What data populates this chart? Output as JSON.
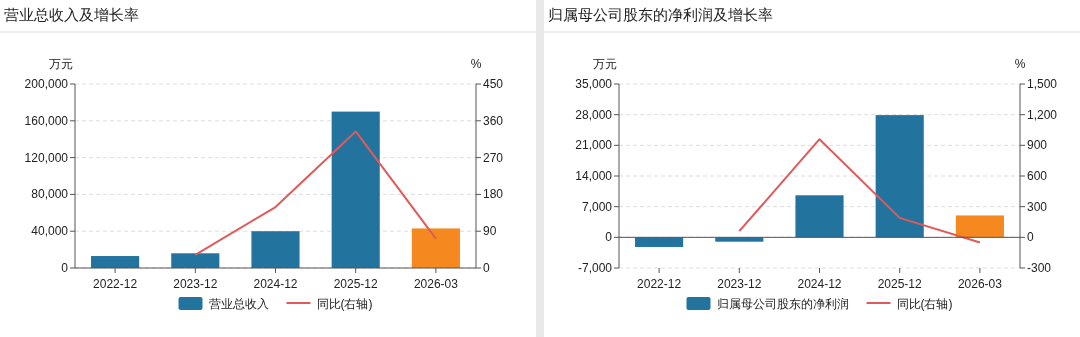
{
  "chart_data": [
    {
      "type": "bar",
      "title": "营业总收入及增长率",
      "ylabel": "万元",
      "y2label": "%",
      "categories": [
        "2022-12",
        "2023-12",
        "2024-12",
        "2025-12",
        "2026-03"
      ],
      "series": [
        {
          "name": "营业总收入",
          "color": "#23739f",
          "colors": [
            "#23739f",
            "#23739f",
            "#23739f",
            "#23739f",
            "#f5891f"
          ],
          "values": [
            13000,
            16000,
            40000,
            170000,
            43000
          ]
        },
        {
          "name": "同比(右轴)",
          "type": "line",
          "axis": "y2",
          "color": "#e05a5a",
          "values": [
            null,
            32,
            149,
            334,
            72
          ]
        }
      ],
      "ylim": [
        0,
        200000
      ],
      "yticks": [
        0,
        {
          "value": 40000,
          "label": "40,000"
        },
        {
          "value": 80000,
          "label": "80,000"
        },
        {
          "value": 120000,
          "label": "120,000"
        },
        {
          "value": 160000,
          "label": "160,000"
        },
        {
          "value": 200000,
          "label": "200,000"
        }
      ],
      "y2lim": [
        0,
        450
      ],
      "y2ticks": [
        0,
        90,
        180,
        270,
        360,
        450
      ],
      "grid": "y",
      "legend": "bottom"
    },
    {
      "type": "bar",
      "title": "归属母公司股东的净利润及增长率",
      "ylabel": "万元",
      "y2label": "%",
      "categories": [
        "2022-12",
        "2023-12",
        "2024-12",
        "2025-12",
        "2026-03"
      ],
      "series": [
        {
          "name": "归属母公司股东的净利润",
          "color": "#23739f",
          "colors": [
            "#23739f",
            "#23739f",
            "#23739f",
            "#23739f",
            "#f5891f"
          ],
          "values": [
            -2200,
            -1000,
            9600,
            27900,
            5000
          ]
        },
        {
          "name": "同比(右轴)",
          "type": "line",
          "axis": "y2",
          "color": "#e05a5a",
          "values": [
            null,
            60,
            960,
            190,
            -50
          ]
        }
      ],
      "ylim": [
        -7000,
        35000
      ],
      "yticks": [
        {
          "value": -7000,
          "label": "-7,000"
        },
        0,
        {
          "value": 7000,
          "label": "7,000"
        },
        {
          "value": 14000,
          "label": "14,000"
        },
        {
          "value": 21000,
          "label": "21,000"
        },
        {
          "value": 28000,
          "label": "28,000"
        },
        {
          "value": 35000,
          "label": "35,000"
        }
      ],
      "y2lim": [
        -300,
        1500
      ],
      "y2ticks": [
        {
          "value": -300,
          "label": "-300"
        },
        0,
        300,
        600,
        900,
        {
          "value": 1200,
          "label": "1,200"
        },
        {
          "value": 1500,
          "label": "1,500"
        }
      ],
      "grid": "y",
      "legend": "bottom"
    }
  ]
}
